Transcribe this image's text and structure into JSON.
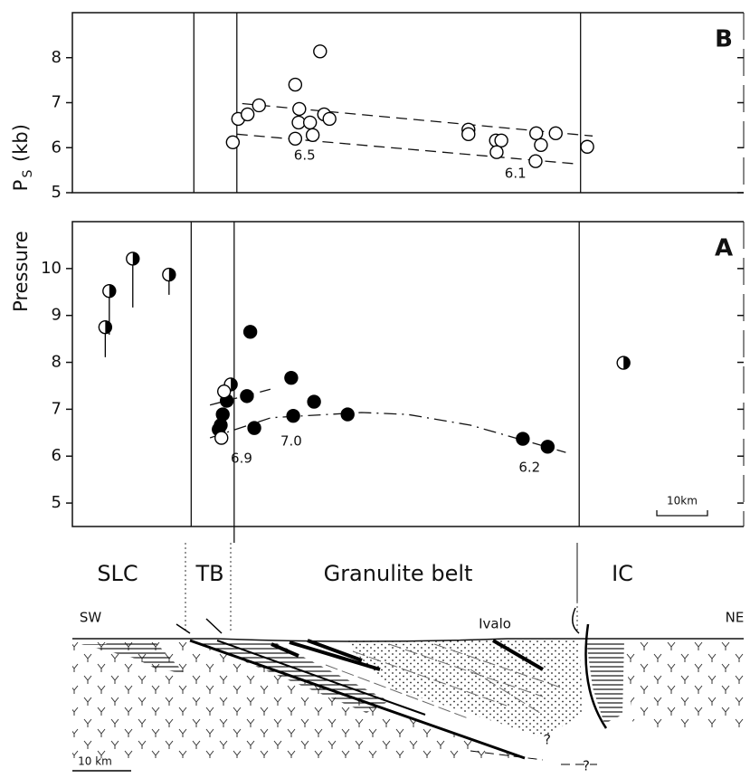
{
  "chart_data": [
    {
      "type": "scatter",
      "panel_label": "B",
      "xlim": [
        0,
        100
      ],
      "ylim": [
        5,
        9
      ],
      "yticks": [
        5,
        6,
        7,
        8
      ],
      "boundaries": [
        18.1,
        24.5,
        75.7
      ],
      "series": [
        {
          "marker": "open",
          "color": "#000000",
          "x": [
            23.9,
            24.7,
            26.1,
            27.8,
            36.9,
            33.2,
            33.8,
            33.7,
            35.4,
            37.5,
            38.3,
            33.2,
            35.8,
            59.0,
            59.0,
            63.1,
            63.9,
            63.2,
            69.1,
            72.0,
            69.8,
            69.0,
            76.7
          ],
          "values": [
            6.12,
            6.64,
            6.74,
            6.94,
            8.14,
            7.4,
            6.86,
            6.56,
            6.56,
            6.74,
            6.64,
            6.2,
            6.28,
            6.4,
            6.3,
            6.16,
            6.16,
            5.9,
            6.32,
            6.32,
            6.06,
            5.7,
            6.02
          ]
        }
      ],
      "trend_lines": [
        {
          "style": "dashed",
          "x": [
            25.3,
            77.5
          ],
          "y": [
            6.98,
            6.26
          ]
        },
        {
          "style": "dashed",
          "x": [
            24.5,
            75.1
          ],
          "y": [
            6.3,
            5.64
          ]
        }
      ],
      "annotations": [
        {
          "text": "6.5",
          "x": 34.6,
          "y": 5.82
        },
        {
          "text": "6.1",
          "x": 66.0,
          "y": 5.42
        }
      ]
    },
    {
      "type": "scatter",
      "panel_label": "A",
      "xlim": [
        0,
        100
      ],
      "ylim": [
        4.5,
        11
      ],
      "yticks": [
        5,
        6,
        7,
        8,
        9,
        10
      ],
      "boundaries": [
        17.7,
        24.1,
        75.5
      ],
      "scale_bar": "10km",
      "series": [
        {
          "marker": "half",
          "color": "#000000",
          "x": [
            4.9,
            5.5,
            9.0,
            14.4,
            82.1,
            23.6
          ],
          "values": [
            8.75,
            9.52,
            10.21,
            9.87,
            7.99,
            7.53
          ],
          "errors": [
            0.64,
            0.93,
            1.04,
            0.43,
            null,
            null
          ]
        },
        {
          "marker": "filled",
          "color": "#000000",
          "x": [
            21.8,
            22.1,
            22.4,
            23.0,
            26.5,
            26.0,
            27.1,
            32.6,
            32.9,
            36.0,
            41.0,
            67.1,
            70.8
          ],
          "values": [
            6.57,
            6.66,
            6.89,
            7.18,
            8.65,
            7.28,
            6.6,
            7.67,
            6.86,
            7.16,
            6.89,
            6.37,
            6.2
          ]
        },
        {
          "marker": "open",
          "color": "#000000",
          "x": [
            22.6,
            22.2
          ],
          "values": [
            7.38,
            6.39
          ]
        }
      ],
      "trend_lines": [
        {
          "style": "dashed",
          "x": [
            20.5,
            29.6
          ],
          "y": [
            7.09,
            7.43
          ]
        },
        {
          "style": "dashdot",
          "x": [
            20.5,
            29.6,
            43.1,
            49.9,
            59.3,
            67.4,
            73.5
          ],
          "y": [
            6.39,
            6.82,
            6.93,
            6.89,
            6.66,
            6.33,
            6.08
          ]
        }
      ],
      "annotations": [
        {
          "text": "6.9",
          "x": 25.2,
          "y": 5.95
        },
        {
          "text": "7.0",
          "x": 32.6,
          "y": 6.31
        },
        {
          "text": "6.2",
          "x": 68.1,
          "y": 5.75
        }
      ]
    }
  ],
  "ylabel": {
    "main": "Pressure",
    "symbol": "P",
    "subscript": "S",
    "unit": "(kb)"
  },
  "section": {
    "regions": [
      "SLC",
      "TB",
      "Granulite belt",
      "IC"
    ],
    "sw": "SW",
    "ne": "NE",
    "place": "Ivalo",
    "unknown": [
      "?",
      "?"
    ],
    "scale": "10 km"
  }
}
